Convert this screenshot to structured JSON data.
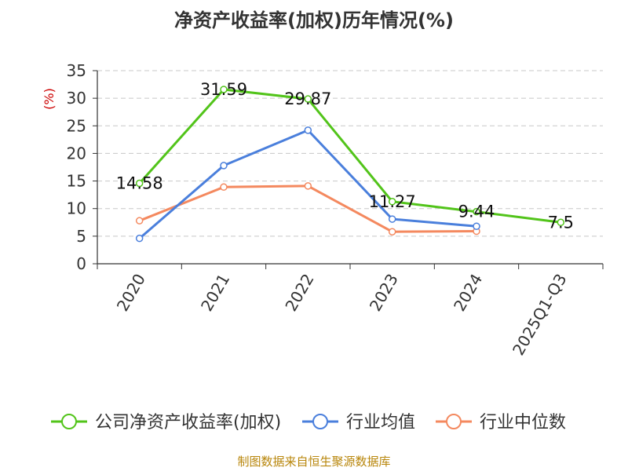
{
  "chart_data": {
    "type": "line",
    "title": "净资产收益率(加权)历年情况(%)",
    "ylabel": "(%)",
    "xlabel": "",
    "categories": [
      "2020",
      "2021",
      "2022",
      "2023",
      "2024",
      "2025Q1-Q3"
    ],
    "ylim": [
      0,
      35
    ],
    "yticks": [
      0,
      5,
      10,
      15,
      20,
      25,
      30,
      35
    ],
    "grid": "horizontal dashed",
    "legend_position": "bottom",
    "series": [
      {
        "name": "公司净资产收益率(加权)",
        "color": "#52c41a",
        "values": [
          14.58,
          31.59,
          29.87,
          11.27,
          9.44,
          7.5
        ],
        "labels": [
          "14.58",
          "31.59",
          "29.87",
          "11.27",
          "9.44",
          "7.5"
        ]
      },
      {
        "name": "行业均值",
        "color": "#4a7fdc",
        "values": [
          4.6,
          17.8,
          24.2,
          8.1,
          6.8,
          null
        ]
      },
      {
        "name": "行业中位数",
        "color": "#f4895f",
        "values": [
          7.8,
          13.9,
          14.1,
          5.8,
          5.9,
          null
        ]
      }
    ]
  },
  "source": "制图数据来自恒生聚源数据库"
}
